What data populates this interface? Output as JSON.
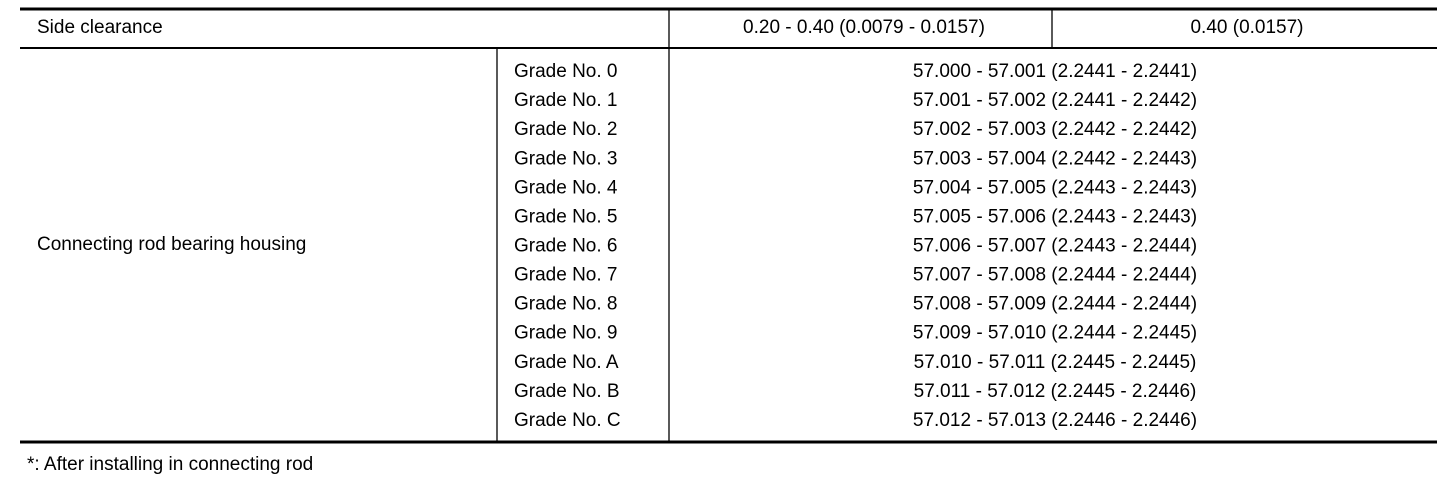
{
  "table": {
    "rows": [
      {
        "item": "Side clearance",
        "standard": "0.20 - 0.40 (0.0079 - 0.0157)",
        "limit": "0.40 (0.0157)"
      },
      {
        "item": "Connecting rod bearing housing",
        "grades": [
          {
            "grade": "Grade No. 0",
            "value": "57.000 - 57.001 (2.2441 - 2.2441)"
          },
          {
            "grade": "Grade No. 1",
            "value": "57.001 - 57.002 (2.2441 - 2.2442)"
          },
          {
            "grade": "Grade No. 2",
            "value": "57.002 - 57.003 (2.2442 - 2.2442)"
          },
          {
            "grade": "Grade No. 3",
            "value": "57.003 - 57.004 (2.2442 - 2.2443)"
          },
          {
            "grade": "Grade No. 4",
            "value": "57.004 - 57.005 (2.2443 - 2.2443)"
          },
          {
            "grade": "Grade No. 5",
            "value": "57.005 - 57.006 (2.2443 - 2.2443)"
          },
          {
            "grade": "Grade No. 6",
            "value": "57.006 - 57.007 (2.2443 - 2.2444)"
          },
          {
            "grade": "Grade No. 7",
            "value": "57.007 - 57.008 (2.2444 - 2.2444)"
          },
          {
            "grade": "Grade No. 8",
            "value": "57.008 - 57.009 (2.2444 - 2.2444)"
          },
          {
            "grade": "Grade No. 9",
            "value": "57.009 - 57.010 (2.2444 - 2.2445)"
          },
          {
            "grade": "Grade No. A",
            "value": "57.010 - 57.011 (2.2445 - 2.2445)"
          },
          {
            "grade": "Grade No. B",
            "value": "57.011 - 57.012 (2.2445 - 2.2446)"
          },
          {
            "grade": "Grade No. C",
            "value": "57.012 - 57.013 (2.2446 - 2.2446)"
          }
        ]
      }
    ],
    "footnote": "*: After installing in connecting rod"
  }
}
